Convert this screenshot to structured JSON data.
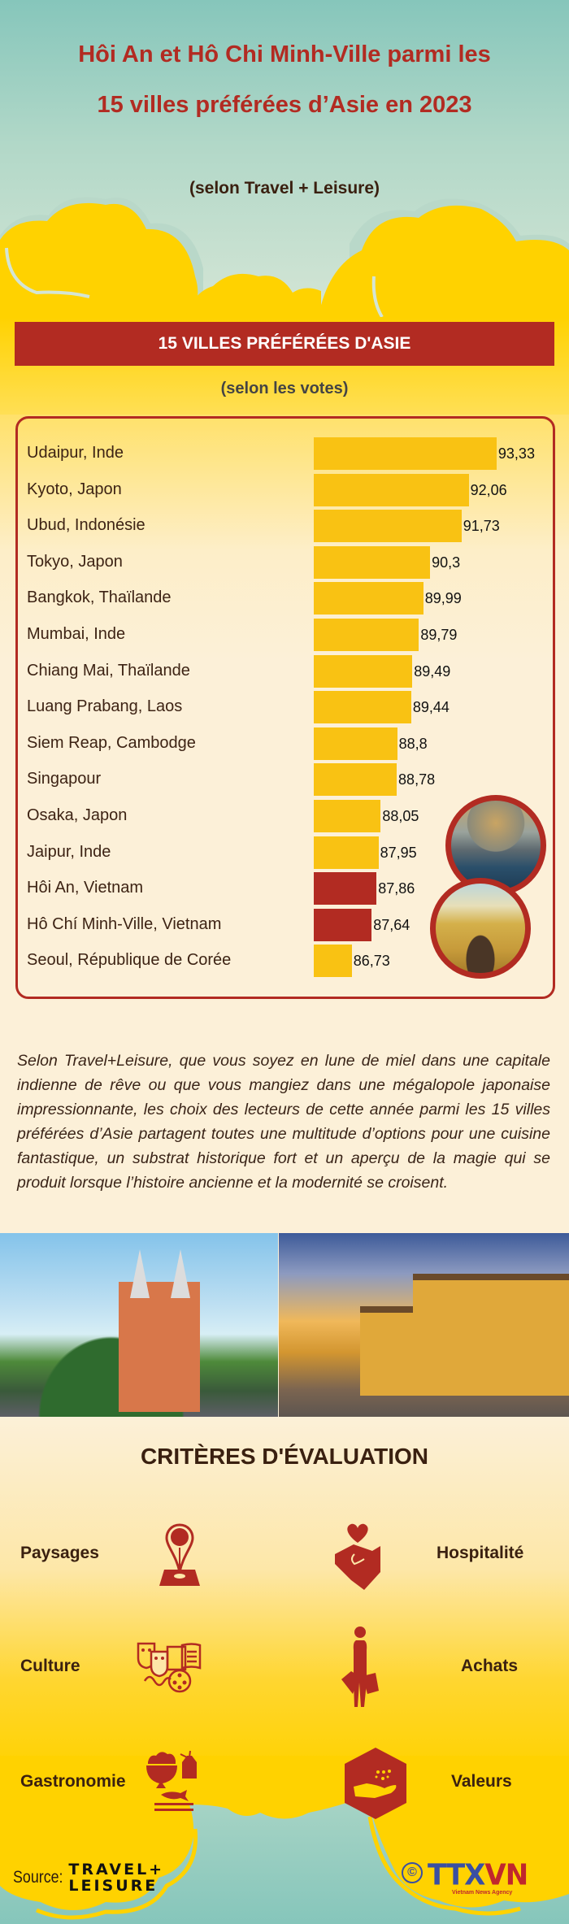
{
  "header": {
    "title_line1": "Hôi An et Hô Chi Minh-Ville parmi les",
    "title_line2": "15 villes préférées d’Asie en 2023",
    "subtitle": "(selon Travel + Leisure)"
  },
  "chart_section": {
    "banner": "15 VILLES PRÉFÉRÉES D'ASIE",
    "subtitle": "(selon les votes)",
    "photos": [
      "hoi-an-boats-photo",
      "saigon-post-office-photo"
    ]
  },
  "chart_data": {
    "type": "bar",
    "orientation": "horizontal",
    "title": "15 VILLES PRÉFÉRÉES D'ASIE",
    "subtitle": "(selon les votes)",
    "xlabel": "",
    "ylabel": "",
    "categories": [
      "Udaipur, Inde",
      "Kyoto, Japon",
      "Ubud, Indonésie",
      "Tokyo, Japon",
      "Bangkok, Thaïlande",
      "Mumbai, Inde",
      "Chiang Mai, Thaïlande",
      "Luang Prabang, Laos",
      "Siem Reap, Cambodge",
      "Singapour",
      "Osaka, Japon",
      "Jaipur, Inde",
      "Hôi An, Vietnam",
      "Hô Chí Minh-Ville, Vietnam",
      " Seoul, République de Corée"
    ],
    "values": [
      93.33,
      92.06,
      91.73,
      90.3,
      89.99,
      89.79,
      89.49,
      89.44,
      88.8,
      88.78,
      88.05,
      87.95,
      87.86,
      87.64,
      86.73
    ],
    "value_labels": [
      "93,33",
      "92,06",
      "91,73",
      "90,3",
      "89,99",
      "89,79",
      "89,49",
      "89,44",
      "88,8",
      "88,78",
      "88,05",
      "87,95",
      "87,86",
      "87,64",
      "86,73"
    ],
    "highlighted": [
      "Hôi An, Vietnam",
      "Hô Chí Minh-Ville, Vietnam"
    ],
    "colors": {
      "default": "#f9c213",
      "highlight": "#b22b22"
    },
    "grid": false,
    "legend": null
  },
  "description": "Selon Travel+Leisure, que vous soyez en lune de miel dans une capitale indienne de rêve ou que vous mangiez dans une mégalopole japonaise impressionnante, les choix des lecteurs de cette année parmi les 15 villes préférées d’Asie partagent toutes une multitude d’options pour une cuisine fantastique, un substrat historique fort et un aperçu de la magie qui se produit lorsque l’histoire ancienne et la modernité se croisent.",
  "criteria": {
    "title": "CRITÈRES D'ÉVALUATION",
    "items": [
      {
        "label": "Paysages",
        "icon": "map-pin-icon"
      },
      {
        "label": "Hospitalité",
        "icon": "handshake-heart-icon"
      },
      {
        "label": "Culture",
        "icon": "culture-masks-icon"
      },
      {
        "label": "Achats",
        "icon": "shopping-person-icon"
      },
      {
        "label": "Gastronomie",
        "icon": "food-bowl-icon"
      },
      {
        "label": "Valeurs",
        "icon": "hand-sparkle-icon"
      }
    ]
  },
  "footer": {
    "source_label": "Source:",
    "source_logo_line1": "TRAVEL+",
    "source_logo_line2": "LEISURE",
    "copyright_symbol": "©",
    "agency_logo": "TTXVN",
    "agency_logo_prefix": "TTX",
    "agency_logo_suffix": "VN",
    "agency_subtitle": "Vietnam News Agency"
  },
  "colors": {
    "accent_red": "#b22b22",
    "bar_yellow": "#f9c213",
    "cloud_yellow": "#ffd200",
    "sky_teal": "#86c6bb",
    "text_brown": "#3a2010",
    "cream": "#fcf0d8"
  }
}
